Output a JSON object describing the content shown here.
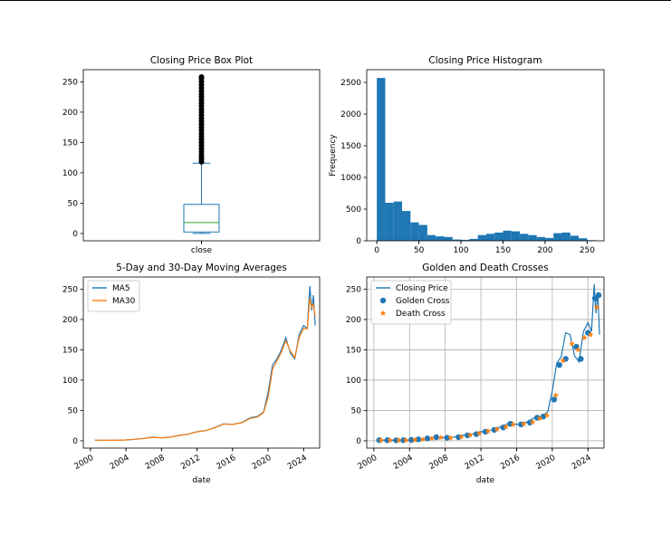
{
  "colors": {
    "blue": "#1f77b4",
    "orange": "#ff7f0e",
    "green": "#2ca02c",
    "grid": "#b0b0b0"
  },
  "chart_data": [
    {
      "type": "box",
      "title": "Closing Price Box Plot",
      "categories": [
        "close"
      ],
      "xlabel": "",
      "ylabel": "",
      "ylim": [
        -12,
        270
      ],
      "yticks": [
        0,
        50,
        100,
        150,
        200,
        250
      ],
      "box": {
        "min": 0.2,
        "q1": 2.5,
        "median": 18,
        "q3": 48,
        "whisker_high": 116,
        "max": 258
      },
      "outliers": [
        118,
        122,
        126,
        130,
        135,
        140,
        145,
        150,
        155,
        160,
        165,
        170,
        175,
        180,
        185,
        190,
        195,
        200,
        205,
        210,
        215,
        220,
        225,
        230,
        235,
        240,
        245,
        250,
        255,
        258
      ],
      "grid": false
    },
    {
      "type": "histogram",
      "title": "Closing Price Histogram",
      "xlabel": "",
      "ylabel": "Frequency",
      "xlim": [
        -12,
        270
      ],
      "ylim": [
        0,
        2700
      ],
      "xticks": [
        0,
        50,
        100,
        150,
        200,
        250
      ],
      "yticks": [
        0,
        500,
        1000,
        1500,
        2000,
        2500
      ],
      "bin_width": 10,
      "bin_starts": [
        0,
        10,
        20,
        30,
        40,
        50,
        60,
        70,
        80,
        90,
        100,
        110,
        120,
        130,
        140,
        150,
        160,
        170,
        180,
        190,
        200,
        210,
        220,
        230,
        240,
        250
      ],
      "values": [
        2570,
        600,
        620,
        470,
        290,
        250,
        90,
        70,
        60,
        20,
        15,
        30,
        90,
        110,
        130,
        160,
        150,
        110,
        90,
        60,
        45,
        120,
        130,
        80,
        40,
        10
      ],
      "grid": false
    },
    {
      "type": "line",
      "title": "5-Day and 30-Day Moving Averages",
      "xlabel": "date",
      "ylabel": "",
      "xlim": [
        1999.2,
        2025.8
      ],
      "ylim": [
        -12,
        270
      ],
      "xticks": [
        "2000",
        "2004",
        "2008",
        "2012",
        "2016",
        "2020",
        "2024"
      ],
      "yticks": [
        0,
        50,
        100,
        150,
        200,
        250
      ],
      "x": [
        2000.5,
        2002,
        2003,
        2004,
        2005,
        2006,
        2007,
        2008,
        2009,
        2010,
        2011,
        2012,
        2013,
        2014,
        2015,
        2016,
        2017,
        2018,
        2018.8,
        2019.5,
        2020,
        2020.5,
        2021,
        2021.5,
        2022,
        2022.5,
        2023,
        2023.5,
        2024,
        2024.4,
        2024.7,
        2024.9,
        2025.1,
        2025.3
      ],
      "series": [
        {
          "name": "MA5",
          "values": [
            1,
            0.8,
            0.9,
            1.5,
            2.5,
            4,
            6,
            5,
            6,
            9,
            11,
            15,
            17,
            22,
            28,
            27,
            30,
            38,
            40,
            48,
            80,
            125,
            135,
            150,
            170,
            145,
            135,
            175,
            190,
            185,
            255,
            215,
            240,
            190
          ]
        },
        {
          "name": "MA30",
          "values": [
            1,
            0.8,
            0.9,
            1.5,
            2.4,
            3.8,
            5.8,
            5,
            6,
            8.8,
            10.8,
            14.7,
            16.8,
            21.6,
            27.5,
            27,
            29.5,
            37,
            39,
            47,
            72,
            118,
            132,
            146,
            165,
            148,
            137,
            170,
            185,
            185,
            235,
            220,
            225,
            205
          ]
        }
      ],
      "legend": "upper left",
      "grid": false
    },
    {
      "type": "line",
      "title": "Golden and Death Crosses",
      "xlabel": "date",
      "ylabel": "",
      "xlim": [
        1999.2,
        2025.8
      ],
      "ylim": [
        -12,
        270
      ],
      "xticks": [
        "2000",
        "2004",
        "2008",
        "2012",
        "2016",
        "2020",
        "2024"
      ],
      "yticks": [
        0,
        50,
        100,
        150,
        200,
        250
      ],
      "x": [
        2000.5,
        2002,
        2003,
        2004,
        2005,
        2006,
        2007,
        2008,
        2009,
        2010,
        2011,
        2012,
        2013,
        2014,
        2015,
        2016,
        2017,
        2018,
        2018.8,
        2019.5,
        2020,
        2020.5,
        2021,
        2021.5,
        2022,
        2022.5,
        2023,
        2023.5,
        2024,
        2024.4,
        2024.7,
        2024.9,
        2025.1,
        2025.3
      ],
      "series": [
        {
          "name": "Closing Price",
          "values": [
            1,
            0.8,
            0.9,
            1.5,
            2.5,
            4,
            6,
            5,
            6,
            9,
            11,
            15,
            17,
            22,
            28,
            27,
            30,
            38,
            40,
            48,
            82,
            128,
            138,
            178,
            175,
            140,
            130,
            180,
            195,
            180,
            258,
            210,
            245,
            175
          ]
        },
        {
          "name": "Golden Cross",
          "marker": "circle",
          "x": [
            2000.6,
            2001.5,
            2002.5,
            2003.3,
            2004.2,
            2005,
            2006,
            2007,
            2008.2,
            2009.5,
            2010.5,
            2011.5,
            2012.5,
            2013.5,
            2014.5,
            2015.3,
            2016.5,
            2017.5,
            2018.3,
            2019,
            2020.2,
            2020.8,
            2021.5,
            2022.7,
            2023.2,
            2024,
            2024.8,
            2025.2
          ],
          "values": [
            1,
            0.9,
            0.8,
            1,
            1.5,
            2.5,
            4,
            6,
            5,
            6,
            9,
            11,
            15,
            18,
            22,
            28,
            27,
            30,
            38,
            40,
            68,
            125,
            135,
            155,
            135,
            178,
            235,
            240
          ]
        },
        {
          "name": "Death Cross",
          "marker": "star",
          "x": [
            2000.8,
            2001.8,
            2002.8,
            2003.6,
            2004.6,
            2005.5,
            2006.5,
            2007.5,
            2008.6,
            2009.8,
            2010.8,
            2011.8,
            2012.8,
            2013.8,
            2014.8,
            2015.6,
            2016.8,
            2017.8,
            2018.6,
            2019.4,
            2020.4,
            2021.2,
            2022.2,
            2022.9,
            2023.6,
            2024.3,
            2025
          ],
          "values": [
            1,
            0.9,
            0.8,
            1,
            1.5,
            2.5,
            4,
            5.5,
            5,
            6.5,
            9.5,
            12,
            16,
            19,
            23,
            27,
            28,
            31,
            37,
            42,
            75,
            132,
            160,
            150,
            170,
            175,
            220
          ]
        }
      ],
      "legend": "upper left",
      "grid": true
    }
  ]
}
